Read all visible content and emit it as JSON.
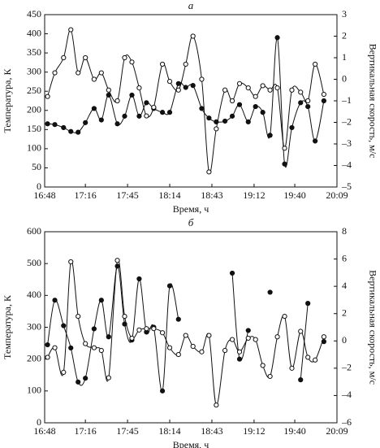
{
  "chart_data": [
    {
      "type": "line",
      "title": "а",
      "x_label": "Время, ч",
      "y_label": "Температура, К",
      "y2_label": "Вертикальная скорость, м/с",
      "x": [
        "16:50",
        "16:55",
        "17:01",
        "17:06",
        "17:11",
        "17:16",
        "17:22",
        "17:27",
        "17:32",
        "17:38",
        "17:43",
        "17:48",
        "17:53",
        "17:58",
        "18:03",
        "18:09",
        "18:14",
        "18:20",
        "18:25",
        "18:30",
        "18:36",
        "18:41",
        "18:46",
        "18:52",
        "18:57",
        "19:02",
        "19:08",
        "19:13",
        "19:18",
        "19:23",
        "19:28",
        "19:33",
        "19:38",
        "19:44",
        "19:49",
        "19:54",
        "20:00"
      ],
      "xlim": [
        "16:48",
        "20:09"
      ],
      "xticks": [
        "16:48",
        "17:16",
        "17:45",
        "18:14",
        "18:43",
        "19:12",
        "19:40",
        "20:09"
      ],
      "ylim": [
        0,
        450
      ],
      "yticks": [
        0,
        50,
        100,
        150,
        200,
        250,
        300,
        350,
        400,
        450
      ],
      "y2lim": [
        -5,
        3
      ],
      "y2ticks": [
        {
          "value": -5,
          "label": "–5"
        },
        {
          "value": -4,
          "label": "–4"
        },
        {
          "value": -3,
          "label": "–3"
        },
        {
          "value": -2,
          "label": "–2"
        },
        {
          "value": -1,
          "label": "–1"
        },
        0,
        1,
        2,
        3
      ],
      "series": [
        {
          "color": "#111111",
          "marker": "filled",
          "values": [
            165,
            163,
            155,
            145,
            143,
            168,
            205,
            175,
            240,
            165,
            185,
            240,
            185,
            220,
            205,
            195,
            195,
            270,
            260,
            265,
            205,
            180,
            170,
            172,
            185,
            215,
            170,
            210,
            195,
            135,
            390,
            60,
            155,
            220,
            210,
            120,
            225
          ]
        },
        {
          "color": "#111111",
          "marker": "open",
          "axis": "y2",
          "values": [
            -0.8,
            0.3,
            1.0,
            2.3,
            0.3,
            1.0,
            0.0,
            0.3,
            -0.5,
            -1.0,
            1.0,
            0.8,
            -0.4,
            -1.7,
            -1.3,
            0.7,
            -0.1,
            -0.5,
            0.7,
            2.0,
            0.0,
            -4.3,
            -2.3,
            -0.5,
            -1.0,
            -0.2,
            -0.4,
            -0.8,
            -0.3,
            -0.5,
            -0.4,
            -3.2,
            -0.5,
            -0.6,
            -1.0,
            0.7,
            -0.7
          ]
        }
      ]
    },
    {
      "type": "line",
      "title": "б",
      "x_label": "Время, ч",
      "y_label": "Температура, К",
      "y2_label": "Вертикальная скорость, м/с",
      "x": [
        "16:50",
        "16:55",
        "17:01",
        "17:06",
        "17:11",
        "17:16",
        "17:22",
        "17:27",
        "17:32",
        "17:38",
        "17:43",
        "17:48",
        "17:53",
        "17:58",
        "18:03",
        "18:09",
        "18:14",
        "18:20",
        "18:25",
        "18:30",
        "18:36",
        "18:41",
        "18:46",
        "18:52",
        "18:57",
        "19:02",
        "19:08",
        "19:13",
        "19:18",
        "19:23",
        "19:28",
        "19:33",
        "19:38",
        "19:44",
        "19:49",
        "19:54",
        "20:00"
      ],
      "xlim": [
        "16:48",
        "20:09"
      ],
      "xticks": [
        "16:48",
        "17:16",
        "17:45",
        "18:14",
        "18:43",
        "19:12",
        "19:40",
        "20:09"
      ],
      "ylim": [
        0,
        600
      ],
      "yticks": [
        0,
        100,
        200,
        300,
        400,
        500,
        600
      ],
      "y2lim": [
        -6,
        8
      ],
      "y2ticks": [
        {
          "value": -6,
          "label": "–6"
        },
        {
          "value": -4,
          "label": "–4"
        },
        {
          "value": -2,
          "label": "–2"
        },
        0,
        2,
        4,
        6,
        8
      ],
      "series": [
        {
          "color": "#111111",
          "marker": "filled",
          "values": [
            245,
            385,
            305,
            235,
            128,
            140,
            295,
            385,
            270,
            492,
            310,
            260,
            452,
            285,
            300,
            100,
            430,
            325,
            null,
            null,
            null,
            null,
            null,
            null,
            470,
            200,
            290,
            null,
            null,
            410,
            null,
            null,
            null,
            135,
            375,
            null,
            255
          ]
        },
        {
          "color": "#111111",
          "marker": "open",
          "axis": "y2",
          "values": [
            -1.2,
            -0.5,
            -2.3,
            5.8,
            1.8,
            -0.2,
            -0.5,
            -0.7,
            -2.7,
            5.9,
            1.8,
            0.2,
            0.8,
            0.9,
            0.9,
            0.6,
            -0.5,
            -1.0,
            0.4,
            -0.4,
            -0.8,
            0.4,
            -4.7,
            -0.7,
            0.1,
            -0.8,
            0.2,
            0.1,
            -1.8,
            -2.6,
            0.3,
            1.8,
            -2.0,
            0.7,
            -1.2,
            -1.4,
            0.3
          ]
        }
      ]
    }
  ]
}
